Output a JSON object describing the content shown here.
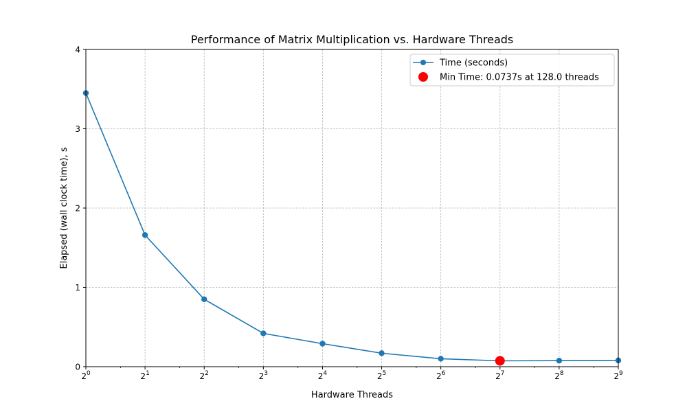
{
  "chart_data": {
    "type": "line",
    "title": "Performance of Matrix Multiplication vs. Hardware Threads",
    "xlabel": "Hardware Threads",
    "ylabel": "Elapsed (wall clock time), s",
    "x_scale": "log2",
    "xlim": [
      1,
      512
    ],
    "ylim": [
      0,
      4
    ],
    "x": [
      1,
      2,
      4,
      8,
      16,
      32,
      64,
      128,
      256,
      512
    ],
    "x_tick_labels": [
      {
        "base": "2",
        "exp": "0"
      },
      {
        "base": "2",
        "exp": "1"
      },
      {
        "base": "2",
        "exp": "2"
      },
      {
        "base": "2",
        "exp": "3"
      },
      {
        "base": "2",
        "exp": "4"
      },
      {
        "base": "2",
        "exp": "5"
      },
      {
        "base": "2",
        "exp": "6"
      },
      {
        "base": "2",
        "exp": "7"
      },
      {
        "base": "2",
        "exp": "8"
      },
      {
        "base": "2",
        "exp": "9"
      }
    ],
    "y_ticks": [
      0,
      1,
      2,
      3,
      4
    ],
    "y_tick_labels": [
      "0",
      "1",
      "2",
      "3",
      "4"
    ],
    "grid": true,
    "legend_position": "top-right",
    "series": [
      {
        "name": "Time (seconds)",
        "color": "#1f77b4",
        "marker": "circle",
        "values": [
          3.45,
          1.66,
          0.85,
          0.42,
          0.29,
          0.17,
          0.1,
          0.0737,
          0.076,
          0.079
        ]
      }
    ],
    "highlight": {
      "name": "Min Time: 0.0737s at 128.0 threads",
      "x": 128,
      "y": 0.0737,
      "color": "#ff0000"
    }
  }
}
